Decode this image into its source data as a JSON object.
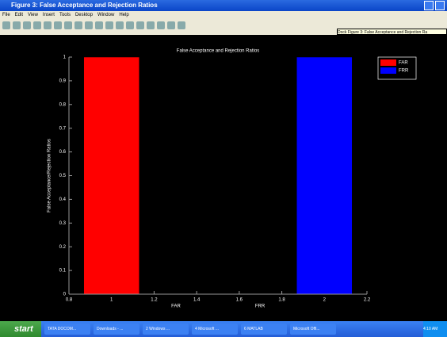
{
  "window": {
    "title": "Figure 3: False Acceptance and Rejection Ratios",
    "menu": [
      "File",
      "Edit",
      "View",
      "Insert",
      "Tools",
      "Desktop",
      "Window",
      "Help"
    ],
    "tooltip": "Dock Figure 3: False Acceptance and Rejection Ra"
  },
  "chart_data": {
    "type": "bar",
    "title": "False Acceptance and Rejection Ratios",
    "ylabel": "False Acceptance/Rejection Ratios",
    "x_annotations": [
      "FAR",
      "FRR"
    ],
    "series": [
      {
        "name": "FAR",
        "color": "#ff0000",
        "x": [
          1
        ],
        "values": [
          1
        ]
      },
      {
        "name": "FRR",
        "color": "#0000ff",
        "x": [
          2
        ],
        "values": [
          1
        ]
      }
    ],
    "xlim": [
      0.8,
      2.2
    ],
    "xticks": [
      0.8,
      1,
      1.2,
      1.4,
      1.6,
      1.8,
      2,
      2.2
    ],
    "ylim": [
      0,
      1
    ],
    "yticks": [
      0,
      0.1,
      0.2,
      0.3,
      0.4,
      0.5,
      0.6,
      0.7,
      0.8,
      0.9,
      1
    ],
    "legend": "upper right",
    "background": "#000000"
  },
  "taskbar": {
    "start": "start",
    "items": [
      "TATA DOCOM...",
      "Downloads - ...",
      "2 Windows ...",
      "4 Microsoft ...",
      "6 MATLAB",
      "Microsoft Offi..."
    ],
    "clock": "4:10 AM"
  }
}
